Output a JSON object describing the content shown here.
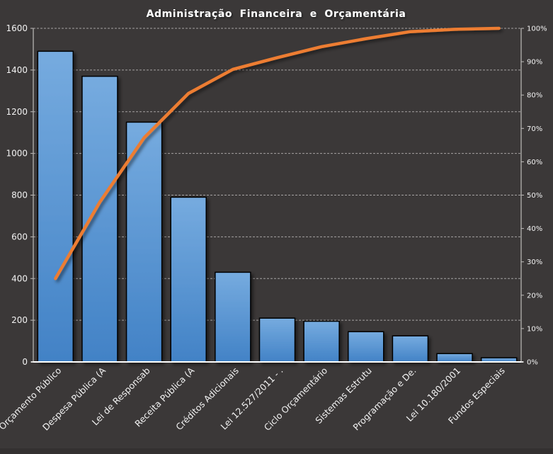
{
  "window": {
    "background": "#3B3838"
  },
  "chart": {
    "title": "Administração Financeira e Orçamentária"
  },
  "chart_data": {
    "type": "pareto (bar + cumulative percentage line)",
    "title": "Administração Financeira e Orçamentária",
    "legend": "none",
    "grid": true,
    "categories": [
      "Orçamento Público",
      "Despesa Pública (A",
      "Lei de Responsab",
      "Receita Pública (A",
      "Créditos Adicionais",
      "Lei 12.527/2011 - .",
      "Ciclo Orçamentário",
      "Sistemas Estrutu",
      "Programação e De.",
      "Lei 10.180/2001",
      "Fundos Especiais"
    ],
    "series": [
      {
        "name": "frequency-bars",
        "type": "bar",
        "axis": "left",
        "values": [
          1490,
          1370,
          1150,
          790,
          430,
          210,
          195,
          145,
          125,
          40,
          20
        ]
      },
      {
        "name": "cumulative-line",
        "type": "line",
        "axis": "right",
        "values_pct": [
          25.0,
          47.9,
          67.2,
          80.5,
          87.7,
          91.2,
          94.5,
          96.9,
          99.0,
          99.7,
          100.0
        ]
      }
    ],
    "left_axis": {
      "min": 0,
      "max": 1600,
      "step": 200,
      "tick_labels": [
        "0",
        "200",
        "400",
        "600",
        "800",
        "1000",
        "1200",
        "1400",
        "1600"
      ]
    },
    "right_axis": {
      "min_pct": 0,
      "max_pct": 100,
      "step_pct": 10,
      "tick_labels": [
        "0%",
        "10%",
        "20%",
        "30%",
        "40%",
        "50%",
        "60%",
        "70%",
        "80%",
        "90%",
        "100%"
      ]
    },
    "colors": {
      "background": "#3B3838",
      "bar_top": "#76ABDF",
      "bar_bottom": "#4282C6",
      "bar_border": "#000000",
      "line": "#ED7D31",
      "gridline": "#C9C6C5",
      "axis": "#BFBDBB",
      "bottom_axis": "#FFFFFF",
      "label_text": "#F2F2F2",
      "title_text": "#FFFFFF"
    }
  }
}
